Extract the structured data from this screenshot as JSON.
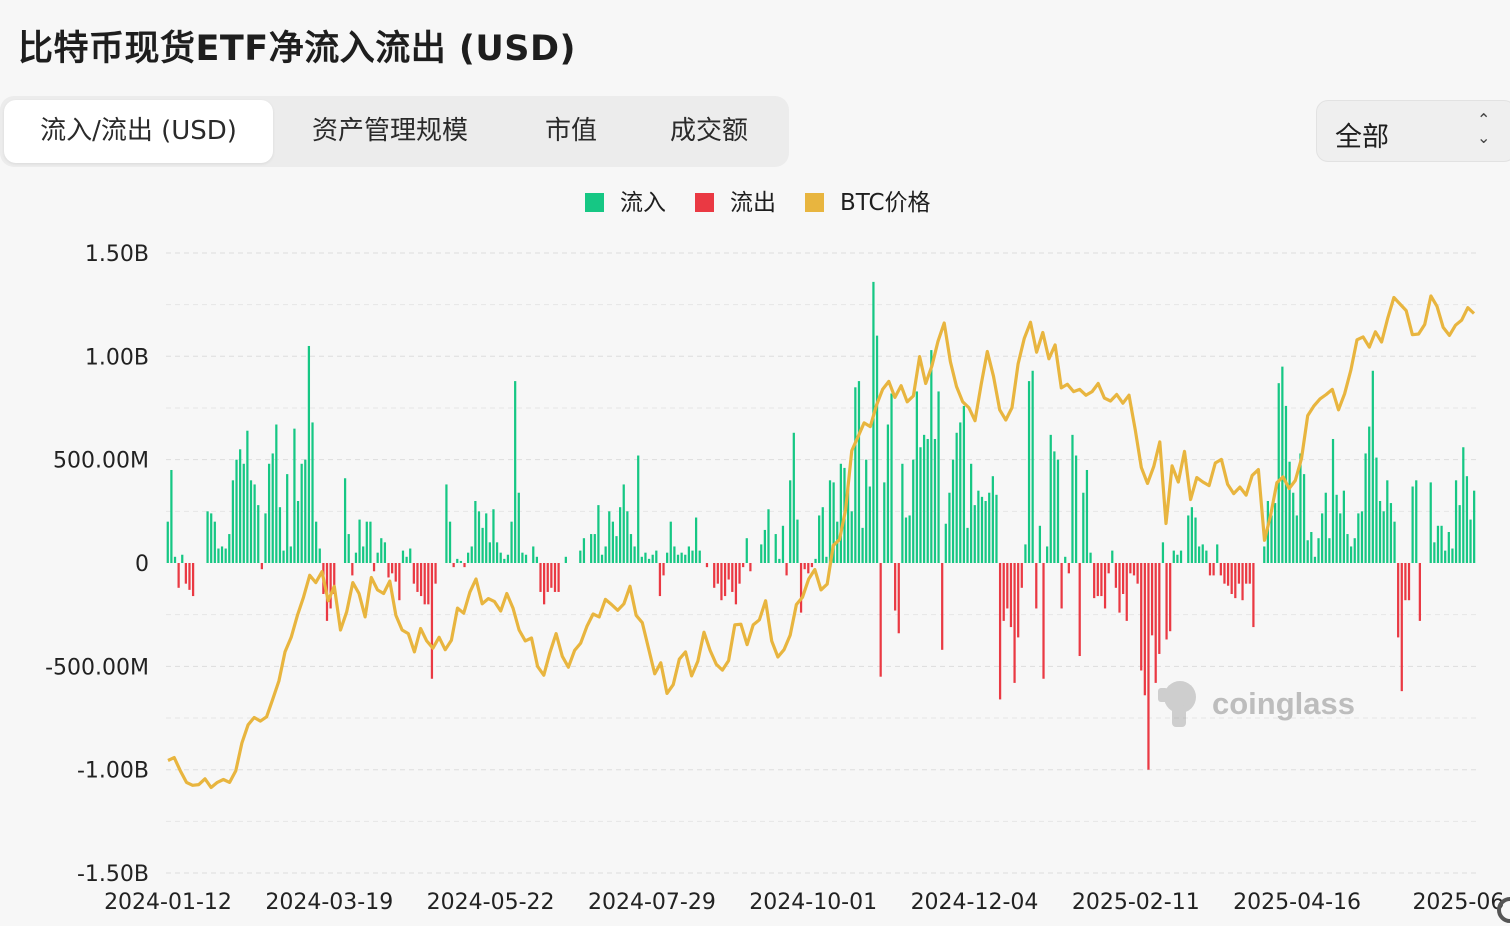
{
  "title": "比特币现货ETF净流入流出 (USD)",
  "tabs": [
    {
      "label": "流入/流出 (USD)",
      "active": true
    },
    {
      "label": "资产管理规模",
      "active": false
    },
    {
      "label": "市值",
      "active": false
    },
    {
      "label": "成交额",
      "active": false
    }
  ],
  "range_select": {
    "value": "全部"
  },
  "watermark": "coinglass",
  "chart_data": {
    "type": "bar",
    "title": "比特币现货ETF净流入流出 (USD)",
    "legend": [
      {
        "name": "流入",
        "color": "#16c784"
      },
      {
        "name": "流出",
        "color": "#ea3943"
      },
      {
        "name": "BTC价格",
        "color": "#e8b53f"
      }
    ],
    "legend_position": "top-center",
    "grid": true,
    "y_ticks": [
      "1.50B",
      "1.00B",
      "500.00M",
      "0",
      "-500.00M",
      "-1.00B",
      "-1.50B"
    ],
    "y_tick_values": [
      1.5,
      1.0,
      0.5,
      0,
      -0.5,
      -1.0,
      -1.5
    ],
    "ylim": [
      -1.5,
      1.5
    ],
    "y_unit": "B USD",
    "x_ticks": [
      "2024-01-12",
      "2024-03-19",
      "2024-05-22",
      "2024-07-29",
      "2024-10-01",
      "2024-12-04",
      "2025-02-11",
      "2025-04-16",
      "2025-06"
    ],
    "flows_B_usd": [
      0.2,
      0.45,
      0.03,
      -0.12,
      0.04,
      -0.1,
      -0.13,
      -0.16,
      0.0,
      0.0,
      0.0,
      0.25,
      0.24,
      0.2,
      0.07,
      0.08,
      0.07,
      0.14,
      0.4,
      0.5,
      0.55,
      0.48,
      0.64,
      0.4,
      0.38,
      0.28,
      -0.03,
      0.24,
      0.48,
      0.53,
      0.67,
      0.27,
      0.06,
      0.43,
      0.08,
      0.65,
      0.3,
      0.48,
      0.5,
      1.05,
      0.68,
      0.2,
      0.07,
      -0.15,
      -0.28,
      -0.22,
      -0.15,
      0.0,
      0.0,
      0.41,
      0.14,
      -0.06,
      0.05,
      0.21,
      0.08,
      0.2,
      0.2,
      -0.04,
      0.05,
      0.12,
      0.1,
      -0.07,
      -0.05,
      -0.09,
      -0.18,
      0.06,
      0.03,
      0.07,
      -0.1,
      -0.14,
      -0.16,
      -0.2,
      -0.2,
      -0.56,
      -0.1,
      0.0,
      0.0,
      0.38,
      0.2,
      -0.02,
      0.02,
      0.01,
      -0.02,
      0.05,
      0.08,
      0.3,
      0.25,
      0.17,
      0.24,
      0.1,
      0.26,
      0.1,
      0.05,
      0.02,
      0.04,
      0.2,
      0.88,
      0.34,
      0.05,
      0.04,
      0.0,
      0.08,
      0.03,
      -0.14,
      -0.2,
      -0.14,
      -0.12,
      -0.14,
      -0.14,
      0.0,
      0.03,
      0.0,
      0.0,
      0.0,
      0.06,
      0.12,
      0.0,
      0.14,
      0.14,
      0.28,
      0.04,
      0.08,
      0.25,
      0.2,
      0.13,
      0.27,
      0.38,
      0.25,
      0.14,
      0.08,
      0.52,
      0.03,
      0.05,
      0.02,
      0.04,
      0.06,
      -0.16,
      -0.06,
      0.05,
      0.2,
      0.08,
      0.04,
      0.05,
      0.04,
      0.08,
      0.06,
      0.22,
      0.06,
      0.0,
      -0.02,
      0.0,
      -0.12,
      -0.1,
      -0.18,
      -0.16,
      -0.08,
      -0.14,
      -0.2,
      -0.1,
      -0.02,
      0.12,
      -0.04,
      0.0,
      0.0,
      0.09,
      0.16,
      0.26,
      0.0,
      0.14,
      0.02,
      0.18,
      -0.06,
      0.4,
      0.63,
      0.21,
      -0.24,
      -0.03,
      -0.05,
      -0.02,
      0.02,
      0.23,
      0.27,
      0.03,
      0.4,
      0.39,
      0.2,
      0.48,
      0.46,
      0.37,
      0.25,
      0.85,
      0.88,
      0.17,
      0.5,
      0.37,
      1.36,
      1.1,
      -0.55,
      0.39,
      0.67,
      0.82,
      -0.23,
      -0.34,
      0.48,
      0.22,
      0.23,
      0.5,
      0.83,
      0.56,
      0.62,
      0.6,
      1.03,
      0.6,
      0.83,
      -0.42,
      0.19,
      0.34,
      0.5,
      0.63,
      0.68,
      0.76,
      0.17,
      0.48,
      0.28,
      0.35,
      0.32,
      0.3,
      0.34,
      0.42,
      0.33,
      -0.66,
      -0.28,
      -0.22,
      -0.31,
      -0.58,
      -0.36,
      -0.12,
      0.09,
      0.88,
      0.93,
      -0.22,
      0.18,
      -0.56,
      0.08,
      0.62,
      0.54,
      0.5,
      -0.22,
      0.03,
      -0.05,
      0.62,
      0.52,
      -0.45,
      0.34,
      0.45,
      0.05,
      -0.17,
      -0.16,
      -0.16,
      -0.22,
      -0.05,
      0.06,
      -0.12,
      -0.24,
      -0.15,
      -0.28,
      -0.05,
      -0.06,
      -0.1,
      -0.52,
      -0.64,
      -1.0,
      -0.35,
      -0.58,
      -0.44,
      0.1,
      -0.37,
      -0.33,
      0.06,
      0.04,
      0.06,
      0.0,
      0.23,
      0.27,
      0.22,
      0.08,
      0.09,
      0.06,
      -0.06,
      -0.06,
      0.09,
      -0.06,
      -0.1,
      -0.11,
      -0.15,
      -0.17,
      -0.1,
      -0.18,
      -0.1,
      -0.1,
      -0.31,
      0.0,
      0.0,
      0.08,
      0.3,
      0.23,
      0.29,
      0.87,
      0.95,
      0.76,
      0.49,
      0.34,
      0.23,
      0.53,
      0.43,
      0.11,
      0.15,
      0.03,
      0.12,
      0.24,
      0.34,
      0.12,
      0.6,
      0.33,
      0.24,
      0.35,
      0.14,
      0.08,
      0.12,
      0.24,
      0.25,
      0.53,
      0.66,
      0.93,
      0.51,
      0.3,
      0.25,
      0.4,
      0.29,
      0.2,
      -0.36,
      -0.62,
      -0.18,
      -0.18,
      0.37,
      0.4,
      -0.28,
      0.0,
      0.0,
      0.39,
      0.1,
      0.18,
      0.18,
      0.06,
      0.15,
      0.07,
      0.4,
      0.28,
      0.56,
      0.42,
      0.21,
      0.35
    ],
    "btc_price_series_name": "BTC价格",
    "btc_price_usd": [
      46100,
      46500,
      44700,
      43100,
      42700,
      42800,
      43600,
      42400,
      43100,
      43500,
      43100,
      44700,
      48500,
      51000,
      52000,
      51500,
      52100,
      54500,
      57000,
      61000,
      63000,
      66000,
      68500,
      71500,
      70500,
      72000,
      68000,
      70000,
      64000,
      66500,
      70500,
      69000,
      65800,
      71200,
      69500,
      69000,
      70700,
      66000,
      64000,
      63500,
      61000,
      64200,
      62500,
      61500,
      63000,
      61300,
      62600,
      67000,
      66300,
      69200,
      71000,
      67600,
      68300,
      67900,
      66600,
      69000,
      67000,
      64000,
      62500,
      62900,
      59000,
      57800,
      60900,
      63500,
      60400,
      58900,
      61200,
      62200,
      64500,
      66200,
      65800,
      68200,
      67500,
      66700,
      67600,
      70000,
      66000,
      65000,
      61500,
      58000,
      59500,
      55300,
      56500,
      60000,
      61000,
      57700,
      59700,
      63700,
      61200,
      59300,
      58500,
      59800,
      64700,
      64800,
      62000,
      64700,
      65400,
      68000,
      62500,
      60300,
      61300,
      63300,
      67500,
      68500,
      71000,
      72300,
      69500,
      70300,
      75600,
      76400,
      80500,
      88600,
      90500,
      92400,
      91900,
      94800,
      97000,
      98100,
      95900,
      97500,
      95300,
      96100,
      101500,
      97800,
      100200,
      103600,
      106100,
      100800,
      97400,
      95300,
      94500,
      92700,
      97700,
      102200,
      98800,
      94200,
      92800,
      94500,
      100500,
      104000,
      106200,
      102100,
      104800,
      101200,
      103100,
      97200,
      97700,
      96700,
      97000,
      96200,
      96700,
      97800,
      95800,
      95400,
      96300,
      95100,
      96200,
      91500,
      86300,
      84100,
      86400,
      89800,
      78600,
      86500,
      84300,
      88500,
      81900,
      84900,
      84300,
      83800,
      86900,
      87400,
      84000,
      82700,
      83600,
      82500,
      85200,
      86000,
      76300,
      79800,
      84200,
      85000,
      83400,
      84500,
      87500,
      93400,
      94700,
      95700,
      96300,
      97000,
      94200,
      96400,
      99600,
      103800,
      104200,
      102800,
      104900,
      103500,
      106800,
      109600,
      108700,
      107800,
      104500,
      104600,
      105900,
      109800,
      108400,
      105500,
      104400,
      105800,
      106500,
      108200,
      107400
    ],
    "btc_price_usd_range_estimated": [
      40000,
      112000
    ]
  }
}
